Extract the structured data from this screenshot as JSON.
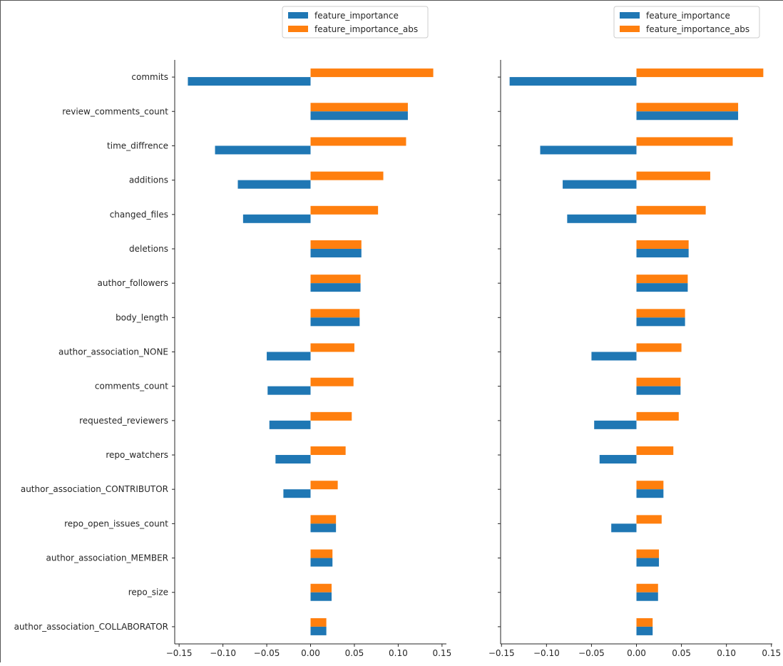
{
  "chart_data": [
    {
      "type": "bar",
      "orientation": "horizontal",
      "categories": [
        "commits",
        "review_comments_count",
        "time_diffrence",
        "additions",
        "changed_files",
        "deletions",
        "author_followers",
        "body_length",
        "author_association_NONE",
        "comments_count",
        "requested_reviewers",
        "repo_watchers",
        "author_association_CONTRIBUTOR",
        "repo_open_issues_count",
        "author_association_MEMBER",
        "repo_size",
        "author_association_COLLABORATOR"
      ],
      "series": [
        {
          "name": "feature_importance",
          "color": "#1f77b4",
          "values": [
            -0.14,
            0.111,
            -0.109,
            -0.083,
            -0.077,
            0.058,
            0.057,
            0.056,
            -0.05,
            -0.049,
            -0.047,
            -0.04,
            -0.031,
            0.029,
            0.025,
            0.024,
            0.018
          ]
        },
        {
          "name": "feature_importance_abs",
          "color": "#ff7f0e",
          "values": [
            0.14,
            0.111,
            0.109,
            0.083,
            0.077,
            0.058,
            0.057,
            0.056,
            0.05,
            0.049,
            0.047,
            0.04,
            0.031,
            0.029,
            0.025,
            0.024,
            0.018
          ]
        }
      ],
      "xticks": [
        "−0.15",
        "−0.10",
        "−0.05",
        "0.00",
        "0.05",
        "0.10",
        "0.15"
      ],
      "xlim": [
        -0.155,
        0.155
      ],
      "legend": "top-center",
      "show_category_labels": true
    },
    {
      "type": "bar",
      "orientation": "horizontal",
      "categories": [
        "commits",
        "review_comments_count",
        "time_diffrence",
        "additions",
        "changed_files",
        "deletions",
        "author_followers",
        "body_length",
        "author_association_NONE",
        "comments_count",
        "requested_reviewers",
        "repo_watchers",
        "author_association_CONTRIBUTOR",
        "repo_open_issues_count",
        "author_association_MEMBER",
        "repo_size",
        "author_association_COLLABORATOR"
      ],
      "series": [
        {
          "name": "feature_importance",
          "color": "#1f77b4",
          "values": [
            -0.141,
            0.113,
            -0.107,
            -0.082,
            -0.077,
            0.058,
            0.057,
            0.054,
            -0.05,
            0.049,
            -0.047,
            -0.041,
            0.03,
            -0.028,
            0.025,
            0.024,
            0.018
          ]
        },
        {
          "name": "feature_importance_abs",
          "color": "#ff7f0e",
          "values": [
            0.141,
            0.113,
            0.107,
            0.082,
            0.077,
            0.058,
            0.057,
            0.054,
            0.05,
            0.049,
            0.047,
            0.041,
            0.03,
            0.028,
            0.025,
            0.024,
            0.018
          ]
        }
      ],
      "xticks": [
        "−0.15",
        "−0.10",
        "−0.05",
        "0.00",
        "0.05",
        "0.10",
        "0.15"
      ],
      "xlim": [
        -0.151,
        0.151
      ],
      "legend": "top-center",
      "show_category_labels": false
    }
  ]
}
